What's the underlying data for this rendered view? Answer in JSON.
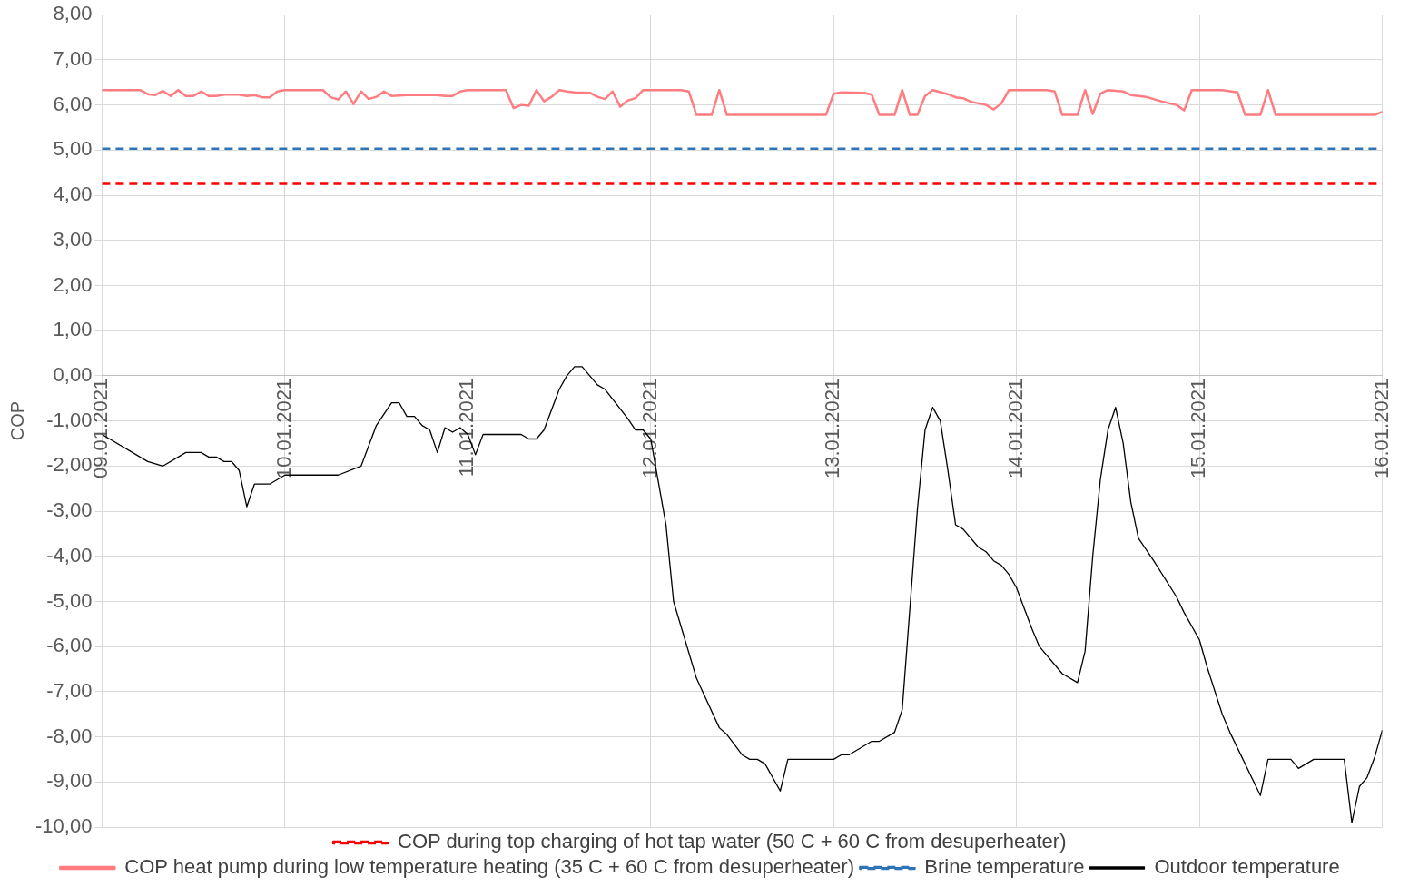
{
  "chart_data": {
    "type": "line",
    "ylabel": "COP",
    "xlim": [
      "2021-01-09",
      "2021-01-16"
    ],
    "xticks": [
      {
        "value": "2021-01-09",
        "label": "09.01.2021"
      },
      {
        "value": "2021-01-10",
        "label": "10.01.2021"
      },
      {
        "value": "2021-01-11",
        "label": "11.01.2021"
      },
      {
        "value": "2021-01-12",
        "label": "12.01.2021"
      },
      {
        "value": "2021-01-13",
        "label": "13.01.2021"
      },
      {
        "value": "2021-01-14",
        "label": "14.01.2021"
      },
      {
        "value": "2021-01-15",
        "label": "15.01.2021"
      },
      {
        "value": "2021-01-16",
        "label": "16.01.2021"
      }
    ],
    "ylim": [
      -10,
      8
    ],
    "yticks": [
      {
        "value": -10,
        "label": "-10,00"
      },
      {
        "value": -9,
        "label": "-9,00"
      },
      {
        "value": -8,
        "label": "-8,00"
      },
      {
        "value": -7,
        "label": "-7,00"
      },
      {
        "value": -6,
        "label": "-6,00"
      },
      {
        "value": -5,
        "label": "-5,00"
      },
      {
        "value": -4,
        "label": "-4,00"
      },
      {
        "value": -3,
        "label": "-3,00"
      },
      {
        "value": -2,
        "label": "-2,00"
      },
      {
        "value": -1,
        "label": "-1,00"
      },
      {
        "value": 0,
        "label": "0,00"
      },
      {
        "value": 1,
        "label": "1,00"
      },
      {
        "value": 2,
        "label": "2,00"
      },
      {
        "value": 3,
        "label": "3,00"
      },
      {
        "value": 4,
        "label": "4,00"
      },
      {
        "value": 5,
        "label": "5,00"
      },
      {
        "value": 6,
        "label": "6,00"
      },
      {
        "value": 7,
        "label": "7,00"
      },
      {
        "value": 8,
        "label": "8,00"
      }
    ],
    "grid": true,
    "legend": "bottom",
    "marker": "none",
    "series": [
      {
        "name": "COP during top charging of hot tap water (50 C + 60 C from desuperheater)",
        "color": "#ff0000",
        "line_style": "dashed",
        "x": [
          "2021-01-09T00:00",
          "2021-01-16T00:00"
        ],
        "values": [
          4.25,
          4.25
        ]
      },
      {
        "name": "COP heat pump during low temperature heating (35 C + 60 C from desuperheater)",
        "color": "#ff7c80",
        "line_style": "solid",
        "x": [
          "2021-01-09T00:00",
          "2021-01-09T05:00",
          "2021-01-09T06:00",
          "2021-01-09T07:00",
          "2021-01-09T08:00",
          "2021-01-09T09:00",
          "2021-01-09T10:00",
          "2021-01-09T11:00",
          "2021-01-09T12:00",
          "2021-01-09T13:00",
          "2021-01-09T14:00",
          "2021-01-09T15:00",
          "2021-01-09T16:00",
          "2021-01-09T18:00",
          "2021-01-09T19:00",
          "2021-01-09T20:00",
          "2021-01-09T21:00",
          "2021-01-09T22:00",
          "2021-01-09T23:00",
          "2021-01-10T00:00",
          "2021-01-10T05:00",
          "2021-01-10T06:00",
          "2021-01-10T07:00",
          "2021-01-10T08:00",
          "2021-01-10T09:00",
          "2021-01-10T10:00",
          "2021-01-10T11:00",
          "2021-01-10T12:00",
          "2021-01-10T13:00",
          "2021-01-10T14:00",
          "2021-01-10T16:00",
          "2021-01-10T20:00",
          "2021-01-10T21:00",
          "2021-01-10T22:00",
          "2021-01-10T23:00",
          "2021-01-11T00:00",
          "2021-01-11T05:00",
          "2021-01-11T06:00",
          "2021-01-11T07:00",
          "2021-01-11T08:00",
          "2021-01-11T09:00",
          "2021-01-11T10:00",
          "2021-01-11T11:00",
          "2021-01-11T12:00",
          "2021-01-11T13:00",
          "2021-01-11T14:00",
          "2021-01-11T16:00",
          "2021-01-11T17:00",
          "2021-01-11T18:00",
          "2021-01-11T19:00",
          "2021-01-11T20:00",
          "2021-01-11T21:00",
          "2021-01-11T22:00",
          "2021-01-11T23:00",
          "2021-01-12T04:00",
          "2021-01-12T05:00",
          "2021-01-12T06:00",
          "2021-01-12T08:00",
          "2021-01-12T09:00",
          "2021-01-12T10:00",
          "2021-01-12T23:00",
          "2021-01-13T00:00",
          "2021-01-13T01:00",
          "2021-01-13T04:00",
          "2021-01-13T05:00",
          "2021-01-13T06:00",
          "2021-01-13T08:00",
          "2021-01-13T09:00",
          "2021-01-13T10:00",
          "2021-01-13T11:00",
          "2021-01-13T12:00",
          "2021-01-13T13:00",
          "2021-01-13T15:00",
          "2021-01-13T16:00",
          "2021-01-13T17:00",
          "2021-01-13T18:00",
          "2021-01-13T20:00",
          "2021-01-13T21:00",
          "2021-01-13T22:00",
          "2021-01-13T23:00",
          "2021-01-14T04:00",
          "2021-01-14T05:00",
          "2021-01-14T06:00",
          "2021-01-14T08:00",
          "2021-01-14T09:00",
          "2021-01-14T10:00",
          "2021-01-14T11:00",
          "2021-01-14T12:00",
          "2021-01-14T14:00",
          "2021-01-14T15:00",
          "2021-01-14T17:00",
          "2021-01-14T19:00",
          "2021-01-14T21:00",
          "2021-01-14T22:00",
          "2021-01-14T23:00",
          "2021-01-15T03:00",
          "2021-01-15T05:00",
          "2021-01-15T06:00",
          "2021-01-15T08:00",
          "2021-01-15T09:00",
          "2021-01-15T10:00",
          "2021-01-15T23:00",
          "2021-01-16T00:00"
        ],
        "values": [
          6.33,
          6.33,
          6.24,
          6.22,
          6.31,
          6.2,
          6.33,
          6.2,
          6.2,
          6.3,
          6.2,
          6.2,
          6.23,
          6.23,
          6.2,
          6.22,
          6.17,
          6.17,
          6.3,
          6.33,
          6.33,
          6.17,
          6.12,
          6.3,
          6.02,
          6.3,
          6.13,
          6.18,
          6.3,
          6.2,
          6.22,
          6.22,
          6.2,
          6.2,
          6.3,
          6.33,
          6.33,
          5.93,
          6.0,
          5.98,
          6.33,
          6.08,
          6.18,
          6.33,
          6.3,
          6.28,
          6.27,
          6.18,
          6.13,
          6.3,
          5.96,
          6.1,
          6.15,
          6.33,
          6.33,
          6.3,
          5.78,
          5.78,
          6.33,
          5.78,
          5.78,
          6.25,
          6.28,
          6.27,
          6.23,
          5.78,
          5.78,
          6.33,
          5.78,
          5.78,
          6.2,
          6.33,
          6.24,
          6.17,
          6.15,
          6.07,
          6.0,
          5.9,
          6.03,
          6.33,
          6.33,
          6.3,
          5.78,
          5.78,
          6.33,
          5.8,
          6.25,
          6.33,
          6.3,
          6.22,
          6.18,
          6.08,
          6.0,
          5.88,
          6.33,
          6.33,
          6.28,
          5.78,
          5.78,
          6.33,
          5.78,
          5.78,
          5.85
        ]
      },
      {
        "name": "Brine temperature",
        "color": "#2e75b6",
        "line_style": "dashed",
        "x": [
          "2021-01-09T00:00",
          "2021-01-16T00:00"
        ],
        "values": [
          5.03,
          5.03
        ]
      },
      {
        "name": "Outdoor temperature",
        "color": "#000000",
        "line_style": "solid",
        "x": [
          "2021-01-09T00:00",
          "2021-01-09T06:00",
          "2021-01-09T08:00",
          "2021-01-09T11:00",
          "2021-01-09T13:00",
          "2021-01-09T14:00",
          "2021-01-09T15:00",
          "2021-01-09T16:00",
          "2021-01-09T17:00",
          "2021-01-09T18:00",
          "2021-01-09T19:00",
          "2021-01-09T20:00",
          "2021-01-09T22:00",
          "2021-01-10T00:00",
          "2021-01-10T07:00",
          "2021-01-10T10:00",
          "2021-01-10T12:00",
          "2021-01-10T13:00",
          "2021-01-10T14:00",
          "2021-01-10T15:00",
          "2021-01-10T16:00",
          "2021-01-10T17:00",
          "2021-01-10T18:00",
          "2021-01-10T19:00",
          "2021-01-10T20:00",
          "2021-01-10T21:00",
          "2021-01-10T22:00",
          "2021-01-10T23:00",
          "2021-01-11T00:00",
          "2021-01-11T01:00",
          "2021-01-11T02:00",
          "2021-01-11T07:00",
          "2021-01-11T08:00",
          "2021-01-11T09:00",
          "2021-01-11T10:00",
          "2021-01-11T12:00",
          "2021-01-11T13:00",
          "2021-01-11T14:00",
          "2021-01-11T15:00",
          "2021-01-11T16:00",
          "2021-01-11T17:00",
          "2021-01-11T18:00",
          "2021-01-11T21:00",
          "2021-01-11T22:00",
          "2021-01-11T23:00",
          "2021-01-12T00:00",
          "2021-01-12T02:00",
          "2021-01-12T03:00",
          "2021-01-12T06:00",
          "2021-01-12T09:00",
          "2021-01-12T10:00",
          "2021-01-12T12:00",
          "2021-01-12T13:00",
          "2021-01-12T14:00",
          "2021-01-12T15:00",
          "2021-01-12T17:00",
          "2021-01-12T18:00",
          "2021-01-13T00:00",
          "2021-01-13T01:00",
          "2021-01-13T02:00",
          "2021-01-13T05:00",
          "2021-01-13T06:00",
          "2021-01-13T08:00",
          "2021-01-13T09:00",
          "2021-01-13T11:00",
          "2021-01-13T12:00",
          "2021-01-13T13:00",
          "2021-01-13T14:00",
          "2021-01-13T15:00",
          "2021-01-13T16:00",
          "2021-01-13T17:00",
          "2021-01-13T19:00",
          "2021-01-13T20:00",
          "2021-01-13T21:00",
          "2021-01-13T22:00",
          "2021-01-13T23:00",
          "2021-01-14T00:00",
          "2021-01-14T02:00",
          "2021-01-14T03:00",
          "2021-01-14T06:00",
          "2021-01-14T08:00",
          "2021-01-14T09:00",
          "2021-01-14T10:00",
          "2021-01-14T11:00",
          "2021-01-14T12:00",
          "2021-01-14T13:00",
          "2021-01-14T14:00",
          "2021-01-14T15:00",
          "2021-01-14T16:00",
          "2021-01-14T18:00",
          "2021-01-14T21:00",
          "2021-01-14T22:00",
          "2021-01-15T00:00",
          "2021-01-15T01:00",
          "2021-01-15T03:00",
          "2021-01-15T04:00",
          "2021-01-15T08:00",
          "2021-01-15T09:00",
          "2021-01-15T12:00",
          "2021-01-15T13:00",
          "2021-01-15T15:00",
          "2021-01-15T19:00",
          "2021-01-15T20:00",
          "2021-01-15T21:00",
          "2021-01-15T22:00",
          "2021-01-15T23:00",
          "2021-01-16T00:00"
        ],
        "values": [
          -1.3,
          -1.9,
          -2.0,
          -1.7,
          -1.7,
          -1.8,
          -1.8,
          -1.9,
          -1.9,
          -2.1,
          -2.9,
          -2.4,
          -2.4,
          -2.2,
          -2.2,
          -2.0,
          -1.1,
          -0.85,
          -0.6,
          -0.6,
          -0.9,
          -0.9,
          -1.1,
          -1.2,
          -1.7,
          -1.15,
          -1.25,
          -1.15,
          -1.3,
          -1.75,
          -1.3,
          -1.3,
          -1.4,
          -1.4,
          -1.2,
          -0.3,
          0.0,
          0.2,
          0.2,
          0.0,
          -0.2,
          -0.3,
          -0.95,
          -1.2,
          -1.2,
          -1.4,
          -3.3,
          -5.0,
          -6.7,
          -7.8,
          -7.95,
          -8.4,
          -8.5,
          -8.5,
          -8.6,
          -9.2,
          -8.5,
          -8.5,
          -8.4,
          -8.4,
          -8.1,
          -8.1,
          -7.9,
          -7.4,
          -2.95,
          -1.2,
          -0.7,
          -1.0,
          -2.1,
          -3.3,
          -3.4,
          -3.8,
          -3.9,
          -4.1,
          -4.2,
          -4.4,
          -4.7,
          -5.6,
          -6.0,
          -6.6,
          -6.8,
          -6.1,
          -4.0,
          -2.3,
          -1.2,
          -0.7,
          -1.5,
          -2.8,
          -3.6,
          -4.1,
          -4.9,
          -5.25,
          -5.85,
          -6.45,
          -7.5,
          -7.9,
          -9.3,
          -8.5,
          -8.5,
          -8.7,
          -8.5,
          -8.5,
          -9.9,
          -9.1,
          -8.9,
          -8.45,
          -7.85
        ]
      }
    ]
  }
}
